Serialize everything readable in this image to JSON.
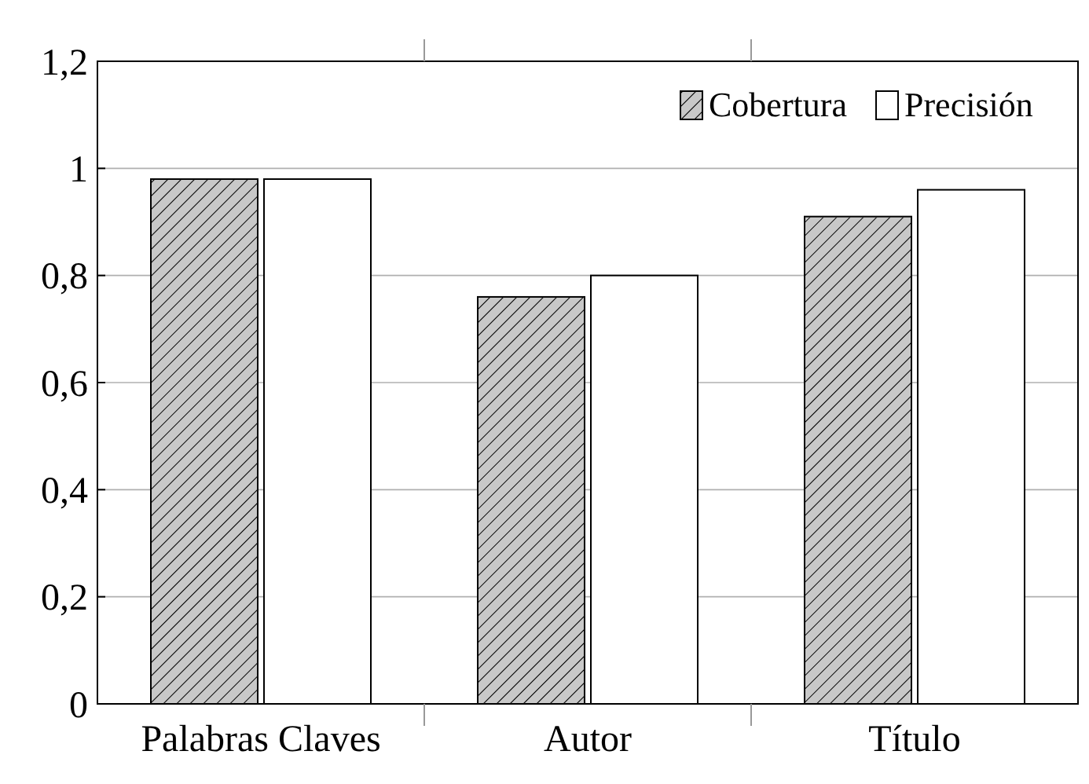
{
  "chart_data": {
    "type": "bar",
    "categories": [
      "Palabras Claves",
      "Autor",
      "Título"
    ],
    "series": [
      {
        "name": "Cobertura",
        "color": "#c8c8c8",
        "values": [
          0.98,
          0.76,
          0.91
        ]
      },
      {
        "name": "Precisión",
        "color": "#ffffff",
        "values": [
          0.98,
          0.8,
          0.96
        ]
      }
    ],
    "ylim": [
      0,
      1.2
    ],
    "yticks": [
      {
        "value": 0,
        "label": "0"
      },
      {
        "value": 0.2,
        "label": "0,2"
      },
      {
        "value": 0.4,
        "label": "0,4"
      },
      {
        "value": 0.6,
        "label": "0,6"
      },
      {
        "value": 0.8,
        "label": "0,8"
      },
      {
        "value": 1,
        "label": "1"
      },
      {
        "value": 1.2,
        "label": "1,2"
      }
    ],
    "grid": "y",
    "legend": "top right"
  }
}
